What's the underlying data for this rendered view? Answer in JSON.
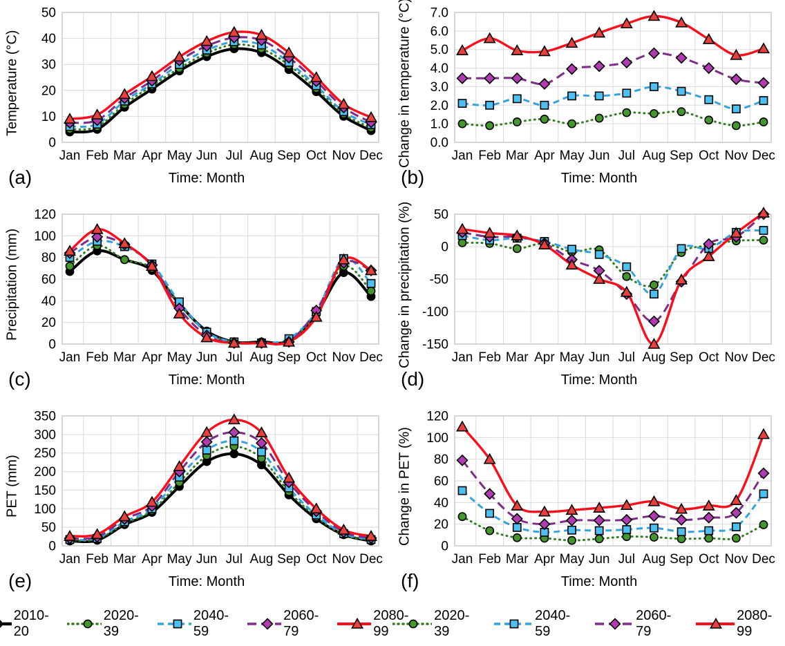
{
  "months": [
    "Jan",
    "Feb",
    "Mar",
    "Apr",
    "May",
    "Jun",
    "Jul",
    "Aug",
    "Sep",
    "Oct",
    "Nov",
    "Dec"
  ],
  "series_styles": {
    "2010-20": {
      "color": "#000000",
      "marker_fill": "#000000",
      "marker": "circle",
      "dash": "solid",
      "width": 4.0
    },
    "2020-39": {
      "color": "#2e7d1e",
      "marker_fill": "#43972c",
      "marker": "circle",
      "dash": "dot",
      "width": 3.0
    },
    "2040-59": {
      "color": "#35a2dc",
      "marker_fill": "#4cc0f0",
      "marker": "square",
      "dash": "dash",
      "width": 3.0
    },
    "2060-79": {
      "color": "#7c2d87",
      "marker_fill": "#b13cb1",
      "marker": "diamond",
      "dash": "longdash",
      "width": 3.0
    },
    "2080-99": {
      "color": "#fb0d1b",
      "marker_fill": "#e8403c",
      "marker": "triangle",
      "dash": "solid",
      "width": 3.4
    }
  },
  "grid_color": "#d9d9d9",
  "border_color": "#bfbfbf",
  "legend_left": {
    "items": [
      {
        "label": "2010-20"
      },
      {
        "label": "2020-39"
      },
      {
        "label": "2040-59"
      },
      {
        "label": "2060-79"
      },
      {
        "label": "2080-99"
      }
    ]
  },
  "legend_right": {
    "items": [
      {
        "label": "2020-39"
      },
      {
        "label": "2040-59"
      },
      {
        "label": "2060-79"
      },
      {
        "label": "2080-99"
      }
    ]
  },
  "chart_data": [
    {
      "panel": "(a)",
      "type": "line",
      "ylabel": "Temperature (°C)",
      "xlabel": "Time: Month",
      "ylim": [
        0,
        50
      ],
      "ystep": 10,
      "ydecimals": 0,
      "grid": true,
      "categories": [
        "Jan",
        "Feb",
        "Mar",
        "Apr",
        "May",
        "Jun",
        "Jul",
        "Aug",
        "Sep",
        "Oct",
        "Nov",
        "Dec"
      ],
      "series": [
        {
          "name": "2010-20",
          "values": [
            4.0,
            5.0,
            13.5,
            20.5,
            27.5,
            33.0,
            36.0,
            34.5,
            28.0,
            19.5,
            10.0,
            4.5
          ]
        },
        {
          "name": "2020-39",
          "values": [
            5.0,
            6.0,
            14.6,
            21.8,
            28.5,
            34.3,
            37.6,
            36.0,
            29.7,
            20.7,
            10.9,
            5.6
          ]
        },
        {
          "name": "2040-59",
          "values": [
            6.1,
            7.0,
            15.9,
            22.5,
            30.0,
            35.5,
            38.7,
            37.5,
            30.8,
            21.8,
            11.8,
            6.8
          ]
        },
        {
          "name": "2060-79",
          "values": [
            7.5,
            8.5,
            17.0,
            23.7,
            31.5,
            37.1,
            40.3,
            39.3,
            32.6,
            23.5,
            13.4,
            7.7
          ]
        },
        {
          "name": "2080-99",
          "values": [
            9.0,
            10.6,
            18.5,
            25.4,
            32.9,
            38.9,
            42.4,
            41.3,
            34.5,
            25.0,
            14.7,
            9.6
          ]
        }
      ]
    },
    {
      "panel": "(b)",
      "type": "line",
      "ylabel": "Change in temperature (°C)",
      "xlabel": "Time: Month",
      "ylim": [
        0,
        7
      ],
      "ystep": 1,
      "ydecimals": 1,
      "grid": true,
      "categories": [
        "Jan",
        "Feb",
        "Mar",
        "Apr",
        "May",
        "Jun",
        "Jul",
        "Aug",
        "Sep",
        "Oct",
        "Nov",
        "Dec"
      ],
      "series": [
        {
          "name": "2020-39",
          "values": [
            1.0,
            0.9,
            1.1,
            1.25,
            1.0,
            1.3,
            1.6,
            1.55,
            1.65,
            1.2,
            0.9,
            1.1
          ]
        },
        {
          "name": "2040-59",
          "values": [
            2.1,
            2.0,
            2.35,
            2.0,
            2.5,
            2.5,
            2.65,
            3.0,
            2.75,
            2.3,
            1.8,
            2.25
          ]
        },
        {
          "name": "2060-79",
          "values": [
            3.45,
            3.45,
            3.45,
            3.15,
            3.95,
            4.1,
            4.3,
            4.8,
            4.55,
            4.0,
            3.4,
            3.2
          ]
        },
        {
          "name": "2080-99",
          "values": [
            4.95,
            5.6,
            4.95,
            4.9,
            5.35,
            5.9,
            6.4,
            6.8,
            6.45,
            5.55,
            4.7,
            5.05
          ]
        }
      ]
    },
    {
      "panel": "(c)",
      "type": "line",
      "ylabel": "Precipitation (mm)",
      "xlabel": "Time: Month",
      "ylim": [
        0,
        120
      ],
      "ystep": 20,
      "ydecimals": 0,
      "grid": true,
      "categories": [
        "Jan",
        "Feb",
        "Mar",
        "Apr",
        "May",
        "Jun",
        "Jul",
        "Aug",
        "Sep",
        "Oct",
        "Nov",
        "Dec"
      ],
      "series": [
        {
          "name": "2010-20",
          "values": [
            67,
            86,
            78,
            68,
            37,
            12,
            2,
            2,
            3,
            28,
            66,
            44
          ]
        },
        {
          "name": "2020-39",
          "values": [
            72,
            91,
            78,
            70,
            37,
            11,
            2,
            1,
            3,
            28,
            72,
            49
          ]
        },
        {
          "name": "2040-59",
          "values": [
            80,
            95,
            90,
            74,
            39,
            11,
            2,
            1,
            5,
            30,
            79,
            56
          ]
        },
        {
          "name": "2060-79",
          "values": [
            84,
            99,
            92,
            73,
            33,
            8,
            1,
            1,
            2,
            31,
            75,
            68
          ]
        },
        {
          "name": "2080-99",
          "values": [
            86,
            106,
            93,
            72,
            28,
            6,
            1,
            1,
            2,
            25,
            78,
            68
          ]
        }
      ]
    },
    {
      "panel": "(d)",
      "type": "line",
      "ylabel": "Change in precipitation (%)",
      "xlabel": "Time: Month",
      "ylim": [
        -150,
        50
      ],
      "ystep": 50,
      "ydecimals": 0,
      "grid": true,
      "categories": [
        "Jan",
        "Feb",
        "Mar",
        "Apr",
        "May",
        "Jun",
        "Jul",
        "Aug",
        "Sep",
        "Oct",
        "Nov",
        "Dec"
      ],
      "series": [
        {
          "name": "2020-39",
          "values": [
            6,
            5,
            -3,
            5,
            -8,
            -5,
            -46,
            -59,
            -9,
            2,
            9,
            10
          ]
        },
        {
          "name": "2040-59",
          "values": [
            17,
            10,
            13,
            8,
            -4,
            -12,
            -31,
            -73,
            -3,
            -3,
            22,
            25
          ]
        },
        {
          "name": "2060-79",
          "values": [
            22,
            15,
            15,
            5,
            -20,
            -37,
            -73,
            -115,
            -54,
            4,
            15,
            50
          ]
        },
        {
          "name": "2080-99",
          "values": [
            27,
            21,
            17,
            3,
            -28,
            -50,
            -70,
            -150,
            -51,
            -15,
            21,
            52
          ]
        }
      ]
    },
    {
      "panel": "(e)",
      "type": "line",
      "ylabel": "PET (mm)",
      "xlabel": "Time: Month",
      "ylim": [
        0,
        350
      ],
      "ystep": 50,
      "ydecimals": 0,
      "grid": true,
      "categories": [
        "Jan",
        "Feb",
        "Mar",
        "Apr",
        "May",
        "Jun",
        "Jul",
        "Aug",
        "Sep",
        "Oct",
        "Nov",
        "Dec"
      ],
      "series": [
        {
          "name": "2010-20",
          "values": [
            13,
            15,
            57,
            90,
            160,
            227,
            248,
            218,
            137,
            73,
            30,
            13
          ]
        },
        {
          "name": "2020-39",
          "values": [
            15,
            18,
            60,
            95,
            171,
            243,
            268,
            236,
            146,
            78,
            30,
            15
          ]
        },
        {
          "name": "2040-59",
          "values": [
            17,
            20,
            65,
            100,
            185,
            258,
            283,
            253,
            156,
            83,
            33,
            17
          ]
        },
        {
          "name": "2060-79",
          "values": [
            20,
            24,
            72,
            107,
            200,
            280,
            306,
            277,
            171,
            93,
            37,
            21
          ]
        },
        {
          "name": "2080-99",
          "values": [
            26,
            31,
            79,
            118,
            214,
            306,
            340,
            305,
            183,
            100,
            43,
            26
          ]
        }
      ]
    },
    {
      "panel": "(f)",
      "type": "line",
      "ylabel": "Change in PET (%)",
      "xlabel": "Time: Month",
      "ylim": [
        0,
        120
      ],
      "ystep": 20,
      "ydecimals": 0,
      "grid": true,
      "categories": [
        "Jan",
        "Feb",
        "Mar",
        "Apr",
        "May",
        "Jun",
        "Jul",
        "Aug",
        "Sep",
        "Oct",
        "Nov",
        "Dec"
      ],
      "series": [
        {
          "name": "2020-39",
          "values": [
            27,
            14,
            7.5,
            7,
            5,
            6.5,
            8.5,
            8,
            6.5,
            7,
            7,
            19.5
          ]
        },
        {
          "name": "2040-59",
          "values": [
            51,
            30,
            17,
            12.5,
            14.5,
            14,
            15,
            16.5,
            13,
            14,
            17.5,
            48
          ]
        },
        {
          "name": "2060-79",
          "values": [
            79,
            48,
            25,
            20,
            23.5,
            23.5,
            24,
            27.5,
            24,
            26,
            30.5,
            67
          ]
        },
        {
          "name": "2080-99",
          "values": [
            110,
            80,
            37,
            31.5,
            33,
            35,
            37.5,
            41,
            34,
            37,
            42,
            103
          ]
        }
      ]
    }
  ]
}
